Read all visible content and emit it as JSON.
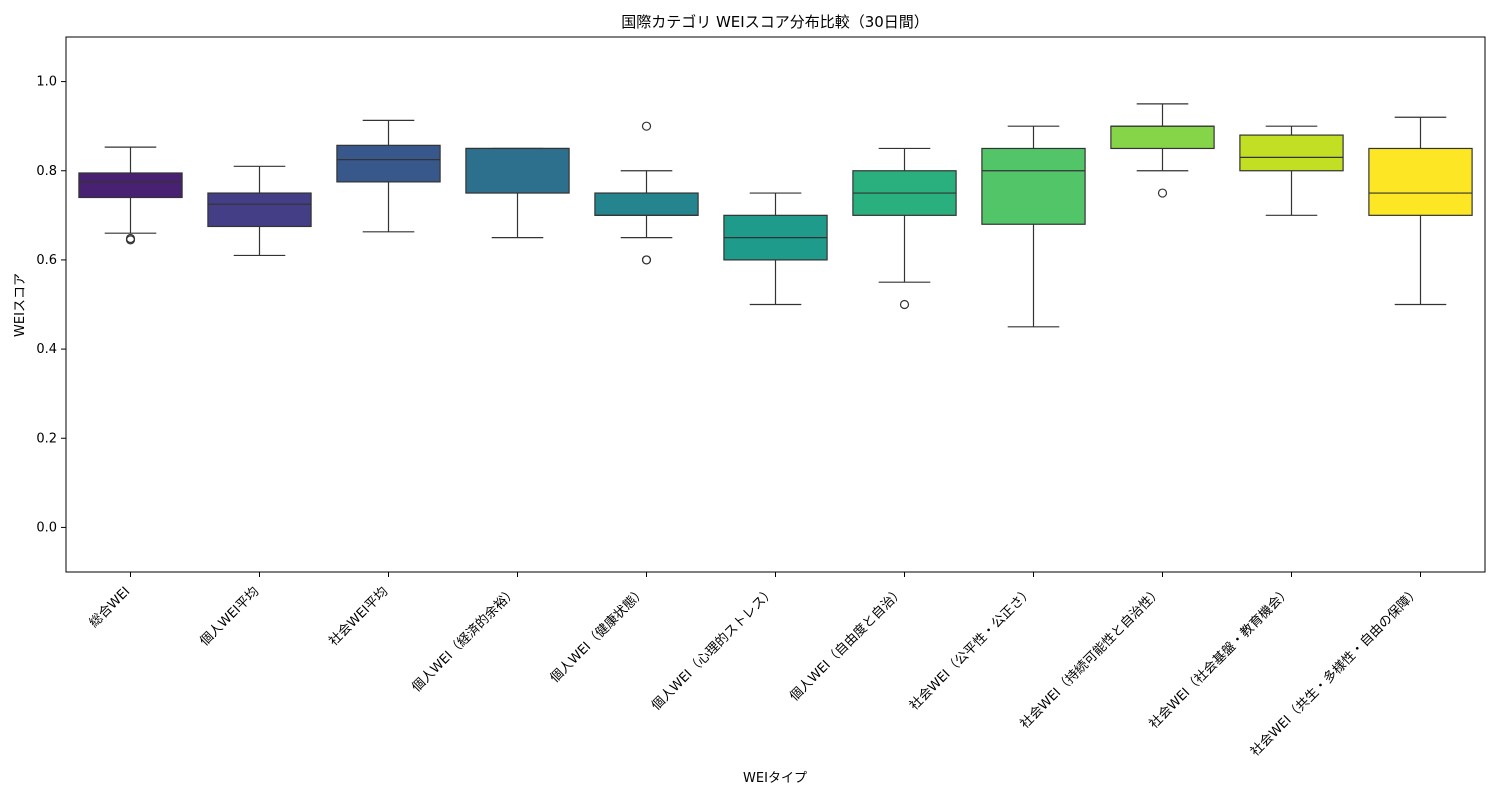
{
  "chart_data": {
    "type": "box",
    "title": "国際カテゴリ WEIスコア分布比較（30日間）",
    "xlabel": "WEIタイプ",
    "ylabel": "WEIスコア",
    "ylim": [
      -0.1,
      1.1
    ],
    "yticks": [
      "0.0",
      "0.2",
      "0.4",
      "0.6",
      "0.8",
      "1.0"
    ],
    "grid": false,
    "categories": [
      {
        "label": "総合WEI",
        "q1": 0.74,
        "median": 0.775,
        "q3": 0.795,
        "whisker_low": 0.66,
        "whisker_high": 0.853,
        "outliers": [
          0.645,
          0.648
        ],
        "color": "#482173"
      },
      {
        "label": "個人WEI平均",
        "q1": 0.675,
        "median": 0.725,
        "q3": 0.75,
        "whisker_low": 0.61,
        "whisker_high": 0.81,
        "outliers": [],
        "color": "#433e85"
      },
      {
        "label": "社会WEI平均",
        "q1": 0.775,
        "median": 0.825,
        "q3": 0.857,
        "whisker_low": 0.663,
        "whisker_high": 0.913,
        "outliers": [],
        "color": "#38588c"
      },
      {
        "label": "個人WEI（経済的余裕）",
        "q1": 0.75,
        "median": 0.85,
        "q3": 0.85,
        "whisker_low": 0.65,
        "whisker_high": 0.85,
        "outliers": [],
        "color": "#2d708e"
      },
      {
        "label": "個人WEI（健康状態）",
        "q1": 0.7,
        "median": 0.7,
        "q3": 0.75,
        "whisker_low": 0.65,
        "whisker_high": 0.8,
        "outliers": [
          0.9,
          0.6,
          0.6
        ],
        "color": "#25858e"
      },
      {
        "label": "個人WEI（心理的ストレス）",
        "q1": 0.6,
        "median": 0.65,
        "q3": 0.7,
        "whisker_low": 0.5,
        "whisker_high": 0.75,
        "outliers": [],
        "color": "#1e9b8a"
      },
      {
        "label": "個人WEI（自由度と自治）",
        "q1": 0.7,
        "median": 0.75,
        "q3": 0.8,
        "whisker_low": 0.55,
        "whisker_high": 0.85,
        "outliers": [
          0.5
        ],
        "color": "#2ab07f"
      },
      {
        "label": "社会WEI（公平性・公正さ）",
        "q1": 0.68,
        "median": 0.8,
        "q3": 0.85,
        "whisker_low": 0.45,
        "whisker_high": 0.9,
        "outliers": [],
        "color": "#52c569"
      },
      {
        "label": "社会WEI（持続可能性と自治性）",
        "q1": 0.85,
        "median": 0.9,
        "q3": 0.9,
        "whisker_low": 0.8,
        "whisker_high": 0.95,
        "outliers": [
          0.75
        ],
        "color": "#86d549"
      },
      {
        "label": "社会WEI（社会基盤・教育機会）",
        "q1": 0.8,
        "median": 0.83,
        "q3": 0.88,
        "whisker_low": 0.7,
        "whisker_high": 0.9,
        "outliers": [],
        "color": "#c2df23"
      },
      {
        "label": "社会WEI（共生・多様性・自由の保障）",
        "q1": 0.7,
        "median": 0.75,
        "q3": 0.85,
        "whisker_low": 0.5,
        "whisker_high": 0.92,
        "outliers": [],
        "color": "#fde725"
      }
    ]
  }
}
